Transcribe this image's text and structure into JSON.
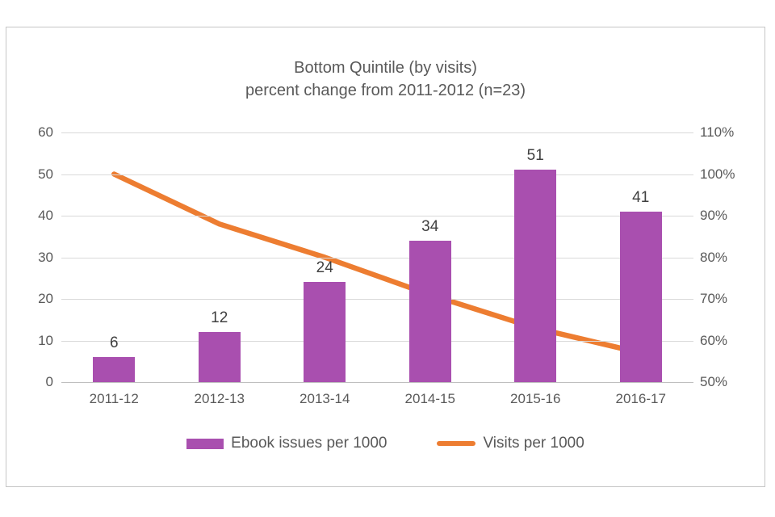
{
  "chart_data": {
    "type": "combo",
    "title_line1": "Bottom Quintile (by visits)",
    "title_line2": "percent change from 2011-2012 (n=23)",
    "categories": [
      "2011-12",
      "2012-13",
      "2013-14",
      "2014-15",
      "2015-16",
      "2016-17"
    ],
    "series": [
      {
        "name": "Ebook issues per 1000",
        "type": "bar",
        "axis": "left",
        "color": "#a94faf",
        "values": [
          6,
          12,
          24,
          34,
          51,
          41
        ],
        "data_labels": [
          "6",
          "12",
          "24",
          "34",
          "51",
          "41"
        ]
      },
      {
        "name": "Visits per 1000",
        "type": "line",
        "axis": "right",
        "color": "#ed7d31",
        "values": [
          100,
          88,
          80,
          71,
          63,
          57
        ]
      }
    ],
    "left_axis": {
      "min": 0,
      "max": 60,
      "step": 10,
      "tick_labels": [
        "0",
        "10",
        "20",
        "30",
        "40",
        "50",
        "60"
      ]
    },
    "right_axis": {
      "min": 50,
      "max": 110,
      "step": 10,
      "tick_labels": [
        "50%",
        "60%",
        "70%",
        "80%",
        "90%",
        "100%",
        "110%"
      ]
    },
    "grid": true,
    "legend_position": "bottom"
  },
  "colors": {
    "bar": "#a94faf",
    "line": "#ed7d31",
    "grid": "#d9d9d9",
    "axis_line": "#bfbfbf",
    "text": "#595959",
    "data_label": "#404040",
    "frame_border": "#c6c6c6"
  }
}
